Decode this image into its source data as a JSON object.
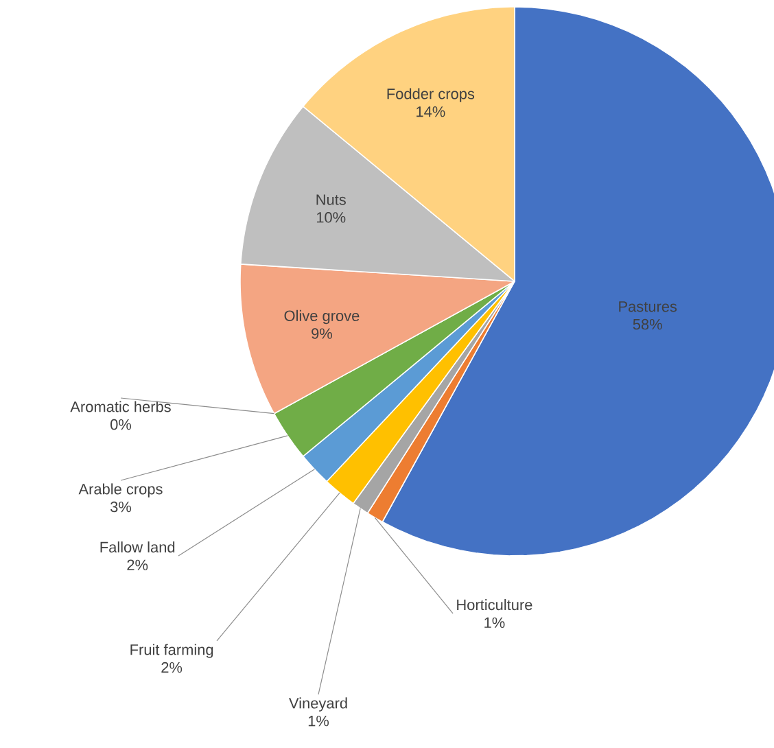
{
  "chart_data": {
    "type": "pie",
    "categories": [
      "Pastures",
      "Horticulture",
      "Vineyard",
      "Fruit farming",
      "Fallow land",
      "Arable crops",
      "Aromatic herbs",
      "Olive grove",
      "Nuts",
      "Fodder crops"
    ],
    "values": [
      58,
      1,
      1,
      2,
      2,
      3,
      0,
      9,
      10,
      14
    ],
    "value_labels": [
      "58%",
      "1%",
      "1%",
      "2%",
      "2%",
      "3%",
      "0%",
      "9%",
      "10%",
      "14%"
    ],
    "colors": [
      "#4472c4",
      "#ed7d31",
      "#a5a5a5",
      "#ffc000",
      "#5b9bd5",
      "#70ad47",
      "#264478",
      "#f4a582",
      "#bfbfbf",
      "#ffd280"
    ]
  }
}
